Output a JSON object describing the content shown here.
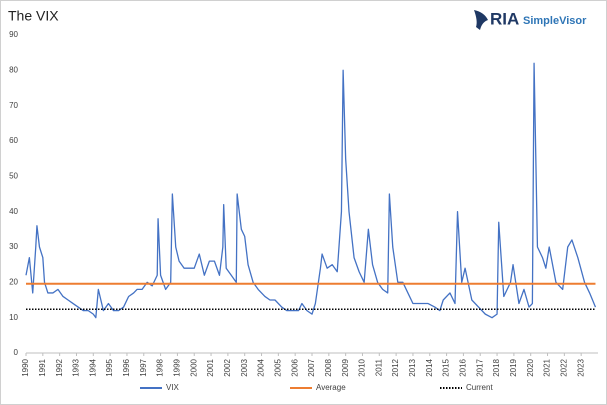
{
  "chart_data": {
    "type": "line",
    "title": "The VIX",
    "x": [
      1990.0,
      1990.2,
      1990.4,
      1990.58,
      1990.65,
      1990.8,
      1991.0,
      1991.1,
      1991.3,
      1991.6,
      1991.9,
      1992.2,
      1992.5,
      1992.8,
      1993.1,
      1993.4,
      1993.7,
      1994.0,
      1994.15,
      1994.3,
      1994.6,
      1994.9,
      1995.2,
      1995.5,
      1995.8,
      1996.1,
      1996.4,
      1996.6,
      1996.9,
      1997.2,
      1997.5,
      1997.8,
      1997.85,
      1998.0,
      1998.3,
      1998.6,
      1998.7,
      1998.9,
      1999.1,
      1999.4,
      1999.7,
      2000.0,
      2000.3,
      2000.6,
      2000.9,
      2001.2,
      2001.5,
      2001.7,
      2001.75,
      2001.9,
      2002.2,
      2002.5,
      2002.55,
      2002.8,
      2003.0,
      2003.2,
      2003.5,
      2003.8,
      2004.2,
      2004.5,
      2004.8,
      2005.2,
      2005.5,
      2005.8,
      2006.2,
      2006.4,
      2006.7,
      2007.0,
      2007.2,
      2007.5,
      2007.6,
      2007.9,
      2008.2,
      2008.5,
      2008.75,
      2008.85,
      2009.0,
      2009.2,
      2009.5,
      2009.8,
      2010.1,
      2010.35,
      2010.6,
      2010.9,
      2011.2,
      2011.5,
      2011.6,
      2011.8,
      2012.1,
      2012.4,
      2012.7,
      2013.0,
      2013.5,
      2013.9,
      2014.3,
      2014.6,
      2014.8,
      2015.2,
      2015.5,
      2015.65,
      2015.9,
      2016.1,
      2016.5,
      2016.9,
      2017.3,
      2017.7,
      2018.0,
      2018.1,
      2018.4,
      2018.8,
      2018.95,
      2019.3,
      2019.6,
      2019.9,
      2020.1,
      2020.2,
      2020.4,
      2020.7,
      2020.9,
      2021.1,
      2021.5,
      2021.9,
      2022.2,
      2022.45,
      2022.8,
      2023.2,
      2023.5,
      2023.85
    ],
    "series": [
      {
        "name": "VIX",
        "color": "#4472c4",
        "style": "solid",
        "values": [
          22,
          27,
          17,
          30,
          36,
          30,
          27,
          20,
          17,
          17,
          18,
          16,
          15,
          14,
          13,
          12,
          12,
          11,
          10,
          18,
          12,
          14,
          12,
          12,
          13,
          16,
          17,
          18,
          18,
          20,
          19,
          22,
          38,
          22,
          18,
          20,
          45,
          30,
          26,
          24,
          24,
          24,
          28,
          22,
          26,
          26,
          22,
          30,
          42,
          24,
          22,
          20,
          45,
          35,
          33,
          25,
          20,
          18,
          16,
          15,
          15,
          13,
          12,
          12,
          12,
          14,
          12,
          11,
          14,
          24,
          28,
          24,
          25,
          23,
          40,
          80,
          55,
          40,
          27,
          23,
          20,
          35,
          25,
          20,
          18,
          17,
          45,
          30,
          20,
          20,
          17,
          14,
          14,
          14,
          13,
          12,
          15,
          17,
          14,
          40,
          20,
          24,
          15,
          13,
          11,
          10,
          11,
          37,
          16,
          20,
          25,
          14,
          18,
          13,
          14,
          82,
          30,
          27,
          24,
          30,
          20,
          18,
          30,
          32,
          27,
          20,
          17,
          13
        ]
      },
      {
        "name": "Average",
        "color": "#ed7d31",
        "style": "solid",
        "x": [
          1990.0,
          2023.85
        ],
        "values": [
          19.6,
          19.6
        ]
      },
      {
        "name": "Current",
        "color": "#000000",
        "style": "dotted",
        "x": [
          1990.0,
          2023.85
        ],
        "values": [
          12.4,
          12.4
        ]
      }
    ],
    "xlim": [
      1990,
      2024
    ],
    "xticks": [
      1990,
      1991,
      1992,
      1993,
      1994,
      1995,
      1996,
      1997,
      1998,
      1999,
      2000,
      2001,
      2002,
      2003,
      2004,
      2005,
      2006,
      2007,
      2008,
      2009,
      2010,
      2011,
      2012,
      2013,
      2014,
      2015,
      2016,
      2017,
      2018,
      2019,
      2020,
      2021,
      2022,
      2023
    ],
    "ylim": [
      0,
      90
    ],
    "yticks": [
      0,
      10,
      20,
      30,
      40,
      50,
      60,
      70,
      80,
      90
    ],
    "grid": false,
    "legend": "bottom"
  },
  "logo": {
    "name": "RIA",
    "product": "SimpleVisor"
  }
}
